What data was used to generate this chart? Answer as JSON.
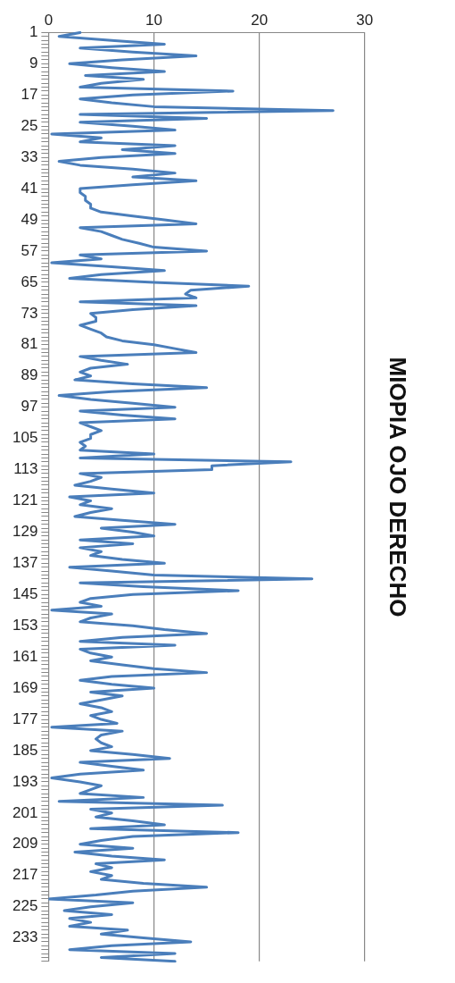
{
  "chart_data": {
    "type": "line",
    "title": "MIOPIA OJO DERECHO",
    "orientation": "horizontal",
    "categories": [
      "1",
      null,
      null,
      null,
      null,
      null,
      null,
      null,
      "9",
      null,
      null,
      null,
      null,
      null,
      null,
      null,
      "17",
      null,
      null,
      null,
      null,
      null,
      null,
      null,
      "25",
      null,
      null,
      null,
      null,
      null,
      null,
      null,
      "33",
      null,
      null,
      null,
      null,
      null,
      null,
      null,
      "41",
      null,
      null,
      null,
      null,
      null,
      null,
      null,
      "49",
      null,
      null,
      null,
      null,
      null,
      null,
      null,
      "57",
      null,
      null,
      null,
      null,
      null,
      null,
      null,
      "65",
      null,
      null,
      null,
      null,
      null,
      null,
      null,
      "73",
      null,
      null,
      null,
      null,
      null,
      null,
      null,
      "81",
      null,
      null,
      null,
      null,
      null,
      null,
      null,
      "89",
      null,
      null,
      null,
      null,
      null,
      null,
      null,
      "97",
      null,
      null,
      null,
      null,
      null,
      null,
      null,
      "105",
      null,
      null,
      null,
      null,
      null,
      null,
      null,
      "113",
      null,
      null,
      null,
      null,
      null,
      null,
      null,
      "121",
      null,
      null,
      null,
      null,
      null,
      null,
      null,
      "129",
      null,
      null,
      null,
      null,
      null,
      null,
      null,
      "137",
      null,
      null,
      null,
      null,
      null,
      null,
      null,
      "145",
      null,
      null,
      null,
      null,
      null,
      null,
      null,
      "153",
      null,
      null,
      null,
      null,
      null,
      null,
      null,
      "161",
      null,
      null,
      null,
      null,
      null,
      null,
      null,
      "169",
      null,
      null,
      null,
      null,
      null,
      null,
      null,
      "177",
      null,
      null,
      null,
      null,
      null,
      null,
      null,
      "185",
      null,
      null,
      null,
      null,
      null,
      null,
      null,
      "193",
      null,
      null,
      null,
      null,
      null,
      null,
      null,
      "201",
      null,
      null,
      null,
      null,
      null,
      null,
      null,
      "209",
      null,
      null,
      null,
      null,
      null,
      null,
      null,
      "217",
      null,
      null,
      null,
      null,
      null,
      null,
      null,
      "225",
      null,
      null,
      null,
      null,
      null,
      null,
      null,
      "233",
      null,
      null,
      null,
      null,
      null,
      null
    ],
    "values": [
      3,
      1,
      6,
      11,
      3,
      8,
      14,
      7,
      2,
      6,
      11,
      3.5,
      9,
      5,
      3,
      17.5,
      8,
      3,
      6,
      10,
      27,
      3,
      15,
      3,
      8,
      12,
      0.3,
      5,
      3,
      12,
      7,
      12,
      5,
      1,
      3,
      8,
      12,
      8,
      14,
      8,
      3,
      3,
      3.5,
      3.5,
      4,
      4,
      5,
      8,
      11,
      14,
      3,
      5,
      6,
      7,
      8.6,
      10,
      15,
      3,
      5,
      0.3,
      6,
      11,
      5,
      2,
      10,
      19,
      13.5,
      13,
      14,
      3,
      14,
      8,
      4,
      4.5,
      4.5,
      3,
      4,
      5,
      5.5,
      7,
      10,
      12,
      14,
      3,
      5,
      7.5,
      4,
      3,
      4,
      2.5,
      8,
      15,
      6,
      1,
      4,
      8,
      12,
      3,
      7,
      12,
      3,
      4,
      5,
      4,
      4,
      3,
      3.5,
      3,
      10,
      3,
      23,
      15.5,
      15.5,
      3,
      5,
      4,
      2.5,
      6,
      10,
      2,
      4,
      3,
      6,
      4,
      2.5,
      7,
      12,
      5,
      8,
      10,
      3,
      8,
      3,
      5,
      4,
      7,
      11,
      2,
      6,
      10,
      25,
      3,
      9,
      18,
      8,
      4,
      3,
      5,
      0.3,
      6,
      4,
      3,
      8,
      11,
      15,
      7,
      3,
      12,
      3,
      4,
      6,
      4,
      7,
      10,
      15,
      6,
      3,
      6,
      10,
      4,
      7,
      5,
      3,
      5,
      6,
      4,
      5,
      6.5,
      0.3,
      7,
      5,
      4.5,
      5,
      6,
      4,
      8,
      11.5,
      3,
      6,
      9,
      3,
      0.3,
      3,
      5,
      4,
      3,
      9,
      1,
      16.5,
      4,
      6,
      4.5,
      8,
      11,
      4,
      18,
      8,
      5,
      3,
      8,
      2.5,
      6,
      11,
      4.5,
      6,
      4,
      6,
      5,
      9,
      15,
      8,
      4.5,
      0,
      8,
      4,
      1.5,
      6,
      2,
      4,
      2,
      7.5,
      5,
      9,
      13.5,
      6,
      2,
      12,
      5,
      12
    ],
    "color": "#4a7ebb",
    "xlim": [
      0,
      30
    ],
    "xticks": [
      0,
      10,
      20,
      30
    ],
    "grid": "x",
    "legend": false,
    "marker": "none"
  }
}
